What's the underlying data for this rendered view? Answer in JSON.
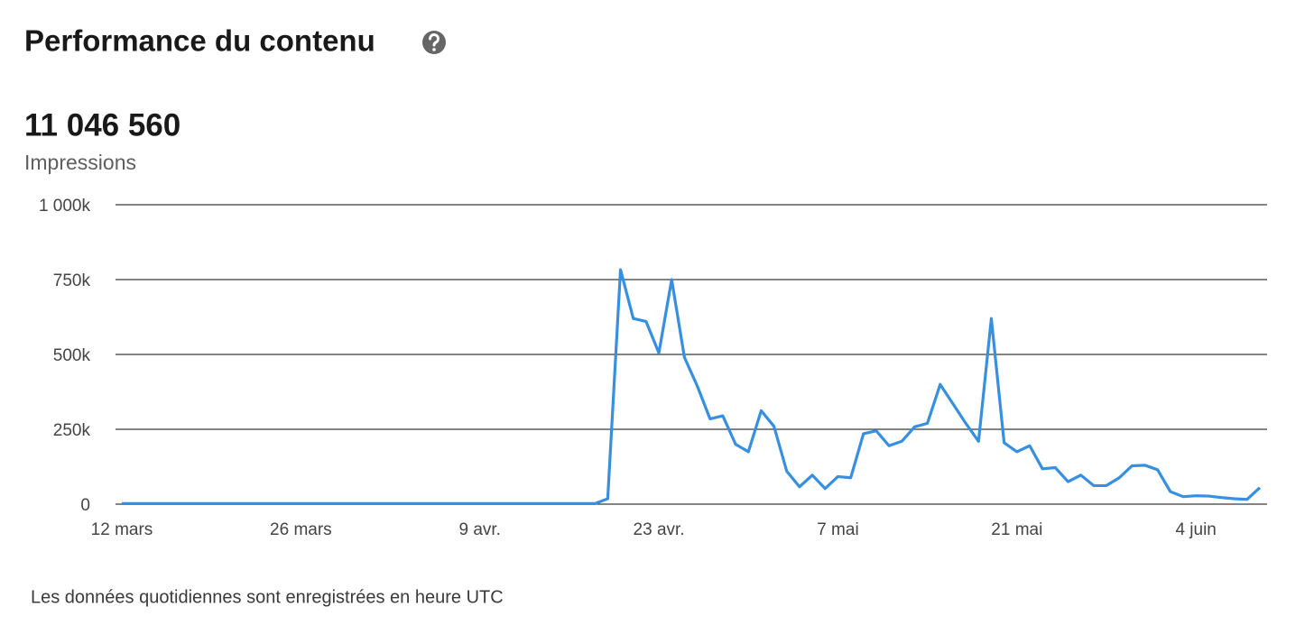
{
  "chart_data": {
    "type": "line",
    "title": "Performance du contenu",
    "total": "11 046 560",
    "metric": "Impressions",
    "footnote": "Les données quotidiennes sont enregistrées en heure UTC",
    "color": "#378fe0",
    "grid": true,
    "ylim": [
      0,
      1000000
    ],
    "yticks": [
      0,
      {
        "value": 250000,
        "label": "250k"
      },
      {
        "value": 500000,
        "label": "500k"
      },
      {
        "value": 750000,
        "label": "750k"
      },
      {
        "value": 1000000,
        "label": "1 000k"
      }
    ],
    "categories": [
      "12 mars",
      null,
      null,
      null,
      null,
      null,
      null,
      null,
      null,
      null,
      null,
      null,
      null,
      null,
      "26 mars",
      null,
      null,
      null,
      null,
      null,
      null,
      null,
      null,
      null,
      null,
      null,
      null,
      null,
      "9 avr.",
      null,
      null,
      null,
      null,
      null,
      null,
      null,
      null,
      null,
      null,
      null,
      null,
      null,
      "23 avr.",
      null,
      null,
      null,
      null,
      null,
      null,
      null,
      null,
      null,
      null,
      null,
      null,
      null,
      "7 mai",
      null,
      null,
      null,
      null,
      null,
      null,
      null,
      null,
      null,
      null,
      null,
      null,
      null,
      "21 mai",
      null,
      null,
      null,
      null,
      null,
      null,
      null,
      null,
      null,
      null,
      null,
      null,
      null,
      "4 juin",
      null,
      null,
      null,
      null,
      null
    ],
    "values": [
      2000,
      2000,
      2000,
      2000,
      2000,
      2000,
      2000,
      2000,
      2000,
      2000,
      2000,
      2000,
      2000,
      2000,
      2000,
      2000,
      2000,
      2000,
      2000,
      2000,
      2000,
      2000,
      2000,
      2000,
      2000,
      2000,
      2000,
      2000,
      2000,
      2000,
      2000,
      2000,
      2000,
      2000,
      2000,
      2000,
      2000,
      2000,
      18000,
      783000,
      620000,
      610000,
      505000,
      750000,
      490000,
      395000,
      285000,
      295000,
      200000,
      175000,
      312000,
      260000,
      110000,
      58000,
      97000,
      52000,
      92000,
      88000,
      235000,
      245000,
      195000,
      210000,
      258000,
      270000,
      400000,
      335000,
      270000,
      210000,
      620000,
      205000,
      175000,
      195000,
      118000,
      122000,
      75000,
      97000,
      62000,
      62000,
      88000,
      128000,
      130000,
      115000,
      42000,
      25000,
      28000,
      27000,
      22000,
      18000,
      16000,
      55000
    ]
  }
}
